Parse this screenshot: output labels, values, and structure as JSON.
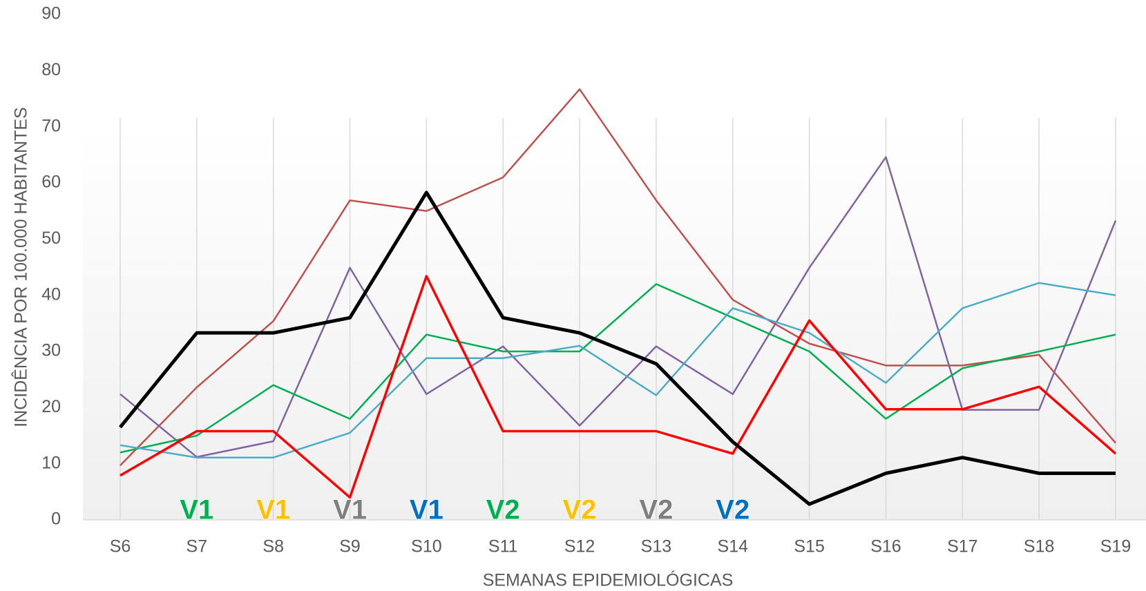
{
  "chart_data": {
    "type": "line",
    "x_label": "SEMANAS EPIDEMIOLÓGICAS",
    "y_label": "INCIDÊNCIA POR 100.000 HABITANTES",
    "categories": [
      "S6",
      "S7",
      "S8",
      "S9",
      "S10",
      "S11",
      "S12",
      "S13",
      "S14",
      "S15",
      "S16",
      "S17",
      "S18",
      "S19"
    ],
    "series": [
      {
        "color": "#c0504d",
        "width": 2.5,
        "values": [
          9.7,
          23.6,
          35.4,
          56.9,
          55,
          61,
          76.7,
          56.9,
          39.2,
          31.4,
          27.5,
          27.5,
          29.4,
          13.7
        ]
      },
      {
        "color": "#8064a2",
        "width": 2.5,
        "values": [
          22.4,
          11.2,
          14,
          44.9,
          22.4,
          30.9,
          16.8,
          30.9,
          22.4,
          44.9,
          64.6,
          19.6,
          19.6,
          53.3
        ]
      },
      {
        "color": "#00b050",
        "width": 2.5,
        "values": [
          12,
          15,
          24,
          18,
          33,
          30,
          30,
          42,
          36,
          30,
          18,
          27,
          30,
          33
        ]
      },
      {
        "color": "#4bacc6",
        "width": 2.5,
        "values": [
          13.3,
          11.1,
          11.1,
          15.5,
          28.8,
          28.8,
          31,
          22.2,
          37.7,
          33.3,
          24.4,
          37.7,
          42.2,
          40
        ]
      },
      {
        "color": "#ff0000",
        "width": 3.5,
        "values": [
          7.9,
          15.8,
          15.8,
          4,
          43.4,
          15.8,
          15.8,
          15.8,
          11.8,
          35.5,
          19.7,
          19.7,
          23.7,
          11.8
        ]
      },
      {
        "color": "#000000",
        "width": 5,
        "values": [
          16.5,
          33.3,
          33.3,
          36,
          58.3,
          36,
          33.3,
          27.8,
          13.9,
          2.8,
          8.3,
          11.1,
          8.3,
          8.3
        ]
      }
    ],
    "annotations": [
      {
        "text": "V1",
        "x": "S7",
        "color": "#00b050"
      },
      {
        "text": "V1",
        "x": "S8",
        "color": "#ffc000"
      },
      {
        "text": "V1",
        "x": "S9",
        "color": "#7f7f7f"
      },
      {
        "text": "V1",
        "x": "S10",
        "color": "#0070c0"
      },
      {
        "text": "V2",
        "x": "S11",
        "color": "#00b050"
      },
      {
        "text": "V2",
        "x": "S12",
        "color": "#ffc000"
      },
      {
        "text": "V2",
        "x": "S13",
        "color": "#7f7f7f"
      },
      {
        "text": "V2",
        "x": "S14",
        "color": "#0070c0"
      }
    ],
    "ylim": [
      0,
      90
    ],
    "yticks": [
      0,
      10,
      20,
      30,
      40,
      50,
      60,
      70,
      80,
      90
    ],
    "grid": true
  }
}
